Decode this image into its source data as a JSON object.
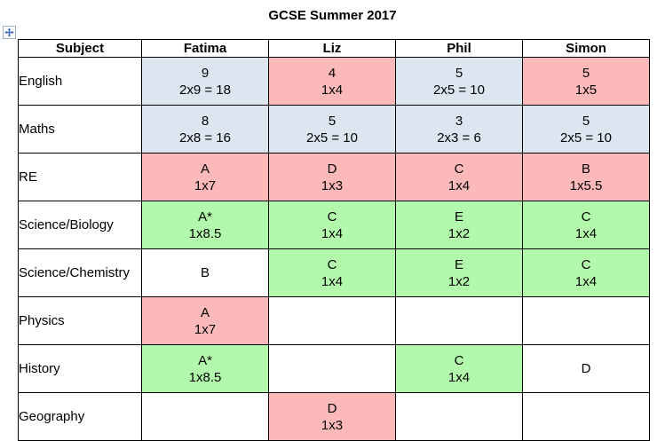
{
  "title": "GCSE Summer 2017",
  "icons": {
    "move_handle": "table-move-handle"
  },
  "colors": {
    "blue": "#DCE6F1",
    "pink": "#FBB9B9",
    "green": "#B3F9AB",
    "white": "#FFFFFF",
    "border": "#000000",
    "handle_arrow": "#3A6BC0"
  },
  "table": {
    "columns": [
      "Subject",
      "Fatima",
      "Liz",
      "Phil",
      "Simon"
    ],
    "rows": [
      {
        "subject": "English",
        "cells": [
          {
            "grade": "9",
            "calc": "2x9 = 18",
            "color": "blue"
          },
          {
            "grade": "4",
            "calc": "1x4",
            "color": "pink"
          },
          {
            "grade": "5",
            "calc": "2x5 = 10",
            "color": "blue"
          },
          {
            "grade": "5",
            "calc": "1x5",
            "color": "pink"
          }
        ]
      },
      {
        "subject": "Maths",
        "cells": [
          {
            "grade": "8",
            "calc": "2x8 = 16",
            "color": "blue"
          },
          {
            "grade": "5",
            "calc": "2x5 = 10",
            "color": "blue"
          },
          {
            "grade": "3",
            "calc": "2x3 = 6",
            "color": "blue"
          },
          {
            "grade": "5",
            "calc": "2x5 = 10",
            "color": "blue"
          }
        ]
      },
      {
        "subject": "RE",
        "cells": [
          {
            "grade": "A",
            "calc": "1x7",
            "color": "pink"
          },
          {
            "grade": "D",
            "calc": "1x3",
            "color": "pink"
          },
          {
            "grade": "C",
            "calc": "1x4",
            "color": "pink"
          },
          {
            "grade": "B",
            "calc": "1x5.5",
            "color": "pink"
          }
        ]
      },
      {
        "subject": "Science/Biology",
        "cells": [
          {
            "grade": "A*",
            "calc": "1x8.5",
            "color": "green"
          },
          {
            "grade": "C",
            "calc": "1x4",
            "color": "green"
          },
          {
            "grade": "E",
            "calc": "1x2",
            "color": "green"
          },
          {
            "grade": "C",
            "calc": "1x4",
            "color": "green"
          }
        ]
      },
      {
        "subject": "Science/Chemistry",
        "cells": [
          {
            "grade": "B",
            "calc": "",
            "color": "white"
          },
          {
            "grade": "C",
            "calc": "1x4",
            "color": "green"
          },
          {
            "grade": "E",
            "calc": "1x2",
            "color": "green"
          },
          {
            "grade": "C",
            "calc": "1x4",
            "color": "green"
          }
        ]
      },
      {
        "subject": "Physics",
        "cells": [
          {
            "grade": "A",
            "calc": "1x7",
            "color": "pink"
          },
          {
            "grade": "",
            "calc": "",
            "color": "white"
          },
          {
            "grade": "",
            "calc": "",
            "color": "white"
          },
          {
            "grade": "",
            "calc": "",
            "color": "white"
          }
        ]
      },
      {
        "subject": "History",
        "cells": [
          {
            "grade": "A*",
            "calc": "1x8.5",
            "color": "green"
          },
          {
            "grade": "",
            "calc": "",
            "color": "white"
          },
          {
            "grade": "C",
            "calc": "1x4",
            "color": "green"
          },
          {
            "grade": "D",
            "calc": "",
            "color": "white"
          }
        ]
      },
      {
        "subject": "Geography",
        "cells": [
          {
            "grade": "",
            "calc": "",
            "color": "white"
          },
          {
            "grade": "D",
            "calc": "1x3",
            "color": "pink"
          },
          {
            "grade": "",
            "calc": "",
            "color": "white"
          },
          {
            "grade": "",
            "calc": "",
            "color": "white"
          }
        ]
      }
    ]
  }
}
